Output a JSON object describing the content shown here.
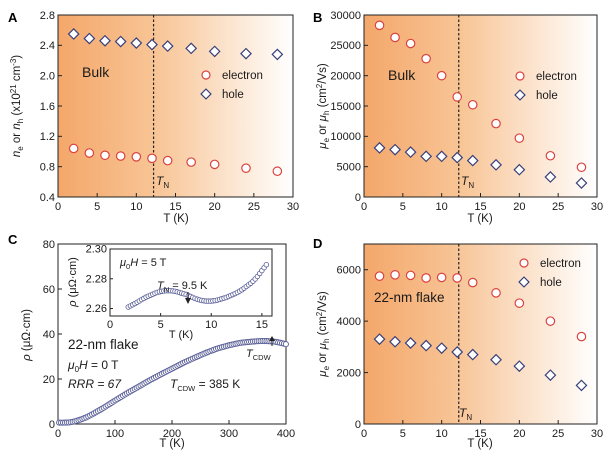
{
  "colors": {
    "electron_edge": "#d9433f",
    "hole_edge": "#38407a",
    "shade_dark": "#f4a76a",
    "shade_light": "#fdeee0",
    "ring_edge": "#5a5f96"
  },
  "chart_data": [
    {
      "panel": "A",
      "type": "scatter",
      "xlabel": "T (K)",
      "ylabel": "n_e or n_h (x10^21 cm^-3)",
      "xlim": [
        0,
        30
      ],
      "ylim": [
        0.4,
        2.8
      ],
      "xticks": [
        0,
        5,
        10,
        15,
        20,
        25,
        30
      ],
      "yticks": [
        "0.4",
        "0.8",
        "1.2",
        "1.6",
        "2.0",
        "2.4",
        "2.8"
      ],
      "shading": "orange gradient fading right",
      "vline": {
        "x": 12.2,
        "label": "T_N"
      },
      "annotation": "Bulk",
      "legend": "right",
      "series": [
        {
          "name": "electron",
          "marker": "circle",
          "x": [
            2,
            4,
            6,
            8,
            10,
            12,
            14,
            17,
            20,
            24,
            28
          ],
          "y": [
            1.04,
            0.98,
            0.95,
            0.94,
            0.93,
            0.91,
            0.88,
            0.86,
            0.83,
            0.78,
            0.74
          ]
        },
        {
          "name": "hole",
          "marker": "diamond",
          "x": [
            2,
            4,
            6,
            8,
            10,
            12,
            14,
            17,
            20,
            24,
            28
          ],
          "y": [
            2.55,
            2.49,
            2.46,
            2.45,
            2.43,
            2.41,
            2.39,
            2.36,
            2.32,
            2.29,
            2.28
          ]
        }
      ]
    },
    {
      "panel": "B",
      "type": "scatter",
      "xlabel": "T (K)",
      "ylabel": "μe or μh (cm2/Vs)",
      "xlim": [
        0,
        30
      ],
      "ylim": [
        0,
        30000
      ],
      "xticks": [
        0,
        5,
        10,
        15,
        20,
        25,
        30
      ],
      "yticks": [
        "0",
        "5000",
        "10000",
        "15000",
        "20000",
        "25000",
        "30000"
      ],
      "shading": "orange gradient fading right",
      "vline": {
        "x": 12.2,
        "label": "T_N"
      },
      "annotation": "Bulk",
      "legend": "right",
      "series": [
        {
          "name": "electron",
          "marker": "circle",
          "x": [
            2,
            4,
            6,
            8,
            10,
            12,
            14,
            17,
            20,
            24,
            28
          ],
          "y": [
            28300,
            26300,
            25300,
            22800,
            20000,
            16500,
            15200,
            12100,
            9700,
            6800,
            4900
          ]
        },
        {
          "name": "hole",
          "marker": "diamond",
          "x": [
            2,
            4,
            6,
            8,
            10,
            12,
            14,
            17,
            20,
            24,
            28
          ],
          "y": [
            8100,
            7800,
            7400,
            6700,
            6700,
            6500,
            6000,
            5300,
            4500,
            3300,
            2300
          ]
        }
      ]
    },
    {
      "panel": "C",
      "type": "scatter",
      "xlabel": "T (K)",
      "ylabel": "ρ (μΩ·cm)",
      "xlim": [
        0,
        400
      ],
      "ylim": [
        0,
        80
      ],
      "xticks": [
        0,
        100,
        200,
        300,
        400
      ],
      "yticks": [
        "0",
        "20",
        "40",
        "60",
        "80"
      ],
      "annotations": [
        "22-nm flake",
        "μ0H = 0 T",
        "RRR = 67",
        "TCDW = 385 K",
        "TCDW"
      ],
      "curve": {
        "x": [
          2,
          10,
          20,
          30,
          40,
          50,
          60,
          80,
          100,
          120,
          140,
          160,
          180,
          200,
          220,
          240,
          260,
          280,
          300,
          320,
          340,
          350,
          360,
          370,
          380,
          390,
          400
        ],
        "y": [
          0.6,
          0.6,
          0.7,
          1.2,
          2.0,
          3.0,
          4.3,
          7.2,
          10.4,
          13.5,
          16.4,
          19.3,
          22.0,
          24.6,
          27.2,
          29.5,
          31.7,
          33.6,
          35.0,
          36.1,
          36.6,
          36.8,
          36.9,
          36.8,
          36.6,
          36.1,
          35.5
        ]
      },
      "inset": {
        "xlabel": "T (K)",
        "ylabel": "ρ (μΩ·cm)",
        "xlim": [
          0,
          16
        ],
        "ylim": [
          2.255,
          2.3
        ],
        "xticks": [
          0,
          5,
          10,
          15
        ],
        "yticks": [
          "2.26",
          "2.28",
          "2.30"
        ],
        "annotations": [
          "μ0H = 5 T",
          "TN = 9.5 K"
        ],
        "curve": {
          "x": [
            1.8,
            2.5,
            3,
            3.5,
            4,
            4.5,
            5,
            5.5,
            6,
            6.5,
            7,
            7.5,
            8,
            8.5,
            9,
            9.5,
            10,
            10.5,
            11,
            11.5,
            12,
            12.5,
            13,
            13.5,
            14,
            14.5,
            15,
            15.5
          ],
          "y": [
            2.261,
            2.2635,
            2.2655,
            2.2675,
            2.269,
            2.2705,
            2.2715,
            2.272,
            2.272,
            2.2715,
            2.2705,
            2.2695,
            2.268,
            2.2665,
            2.2655,
            2.265,
            2.265,
            2.2655,
            2.2665,
            2.2675,
            2.269,
            2.2705,
            2.2725,
            2.275,
            2.2775,
            2.281,
            2.2855,
            2.29
          ]
        }
      }
    },
    {
      "panel": "D",
      "type": "scatter",
      "xlabel": "T (K)",
      "ylabel": "μe or μh (cm2/Vs)",
      "xlim": [
        0,
        30
      ],
      "ylim": [
        0,
        7000
      ],
      "xticks": [
        0,
        5,
        10,
        15,
        20,
        25,
        30
      ],
      "yticks": [
        "0",
        "2000",
        "4000",
        "6000"
      ],
      "shading": "orange gradient fading right",
      "vline": {
        "x": 12.2,
        "label": "T_N"
      },
      "annotation": "22-nm flake",
      "legend": "top-right",
      "series": [
        {
          "name": "electron",
          "marker": "circle",
          "x": [
            2,
            4,
            6,
            8,
            10,
            12,
            14,
            17,
            20,
            24,
            28
          ],
          "y": [
            5750,
            5800,
            5780,
            5680,
            5700,
            5680,
            5500,
            5100,
            4700,
            4000,
            3400
          ]
        },
        {
          "name": "hole",
          "marker": "diamond",
          "x": [
            2,
            4,
            6,
            8,
            10,
            12,
            14,
            17,
            20,
            24,
            28
          ],
          "y": [
            3300,
            3200,
            3150,
            3050,
            2950,
            2800,
            2700,
            2500,
            2250,
            1900,
            1500
          ]
        }
      ]
    }
  ],
  "labels": {
    "A": {
      "panel": "A",
      "bulk": "Bulk",
      "tn": "T",
      "tn_sub": "N",
      "electron": "electron",
      "hole": "hole",
      "xlabel": "T (K)"
    },
    "B": {
      "panel": "B",
      "bulk": "Bulk",
      "tn": "T",
      "tn_sub": "N",
      "electron": "electron",
      "hole": "hole",
      "xlabel": "T (K)"
    },
    "C": {
      "panel": "C",
      "flake": "22-nm flake",
      "field": "μ0H = 0 T",
      "rrr": "RRR = 67",
      "tcdw": "TCDW = 385 K",
      "tcdw_arrow": "TCDW",
      "inset_field": "μ0H = 5 T",
      "inset_tn": "TN = 9.5 K",
      "xlabel": "T (K)",
      "inset_xlabel": "T (K)"
    },
    "D": {
      "panel": "D",
      "flake": "22-nm flake",
      "tn": "T",
      "tn_sub": "N",
      "electron": "electron",
      "hole": "hole",
      "xlabel": "T (K)"
    }
  }
}
